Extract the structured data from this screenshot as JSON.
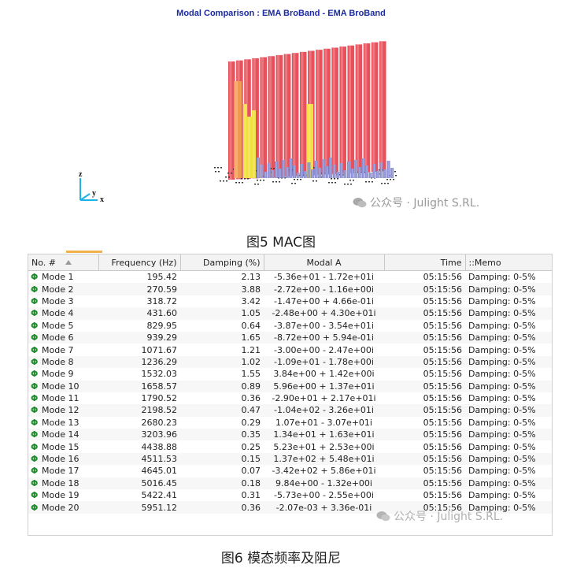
{
  "mac": {
    "title": "Modal Comparison : EMA BroBand - EMA BroBand",
    "axis_labels": {
      "z": "z",
      "y": "y",
      "x": "x"
    },
    "colors": {
      "high": "#e8515c",
      "mid": "#f0e040",
      "orange": "#ef9a50",
      "low": "#8a8ed0"
    }
  },
  "watermark1": {
    "text": "公众号 · Julight S.RL."
  },
  "watermark2": {
    "text": "公众号 · Julight S.RL."
  },
  "caption1": "图5 MAC图",
  "caption2": "图6 模态频率及阻尼",
  "table": {
    "headers": {
      "no": "No. #",
      "frequency": "Frequency (Hz)",
      "damping": "Damping (%)",
      "modal": "Modal A",
      "time": "Time",
      "memo": "::Memo"
    },
    "mode_icon": "Φ",
    "rows": [
      {
        "mode": "Mode 1",
        "freq": "195.42",
        "damp": "2.13",
        "modal": "-5.36e+01 - 1.72e+01i",
        "time": "05:15:56",
        "memo": "Damping: 0-5%"
      },
      {
        "mode": "Mode 2",
        "freq": "270.59",
        "damp": "3.88",
        "modal": "-2.72e+00 - 1.16e+00i",
        "time": "05:15:56",
        "memo": "Damping: 0-5%"
      },
      {
        "mode": "Mode 3",
        "freq": "318.72",
        "damp": "3.42",
        "modal": "-1.47e+00 + 4.66e-01i",
        "time": "05:15:56",
        "memo": "Damping: 0-5%"
      },
      {
        "mode": "Mode 4",
        "freq": "431.60",
        "damp": "1.05",
        "modal": "-2.48e+00 + 4.30e+01i",
        "time": "05:15:56",
        "memo": "Damping: 0-5%"
      },
      {
        "mode": "Mode 5",
        "freq": "829.95",
        "damp": "0.64",
        "modal": "-3.87e+00 - 3.54e+01i",
        "time": "05:15:56",
        "memo": "Damping: 0-5%"
      },
      {
        "mode": "Mode 6",
        "freq": "939.29",
        "damp": "1.65",
        "modal": "-8.72e+00 + 5.94e-01i",
        "time": "05:15:56",
        "memo": "Damping: 0-5%"
      },
      {
        "mode": "Mode 7",
        "freq": "1071.67",
        "damp": "1.21",
        "modal": "-3.00e+00 - 2.47e+00i",
        "time": "05:15:56",
        "memo": "Damping: 0-5%"
      },
      {
        "mode": "Mode 8",
        "freq": "1236.29",
        "damp": "1.02",
        "modal": "-1.09e+01 - 1.78e+00i",
        "time": "05:15:56",
        "memo": "Damping: 0-5%"
      },
      {
        "mode": "Mode 9",
        "freq": "1532.03",
        "damp": "1.55",
        "modal": "3.84e+00 + 1.42e+00i",
        "time": "05:15:56",
        "memo": "Damping: 0-5%"
      },
      {
        "mode": "Mode 10",
        "freq": "1658.57",
        "damp": "0.89",
        "modal": "5.96e+00 + 1.37e+01i",
        "time": "05:15:56",
        "memo": "Damping: 0-5%"
      },
      {
        "mode": "Mode 11",
        "freq": "1790.52",
        "damp": "0.36",
        "modal": "-2.90e+01 + 2.17e+01i",
        "time": "05:15:56",
        "memo": "Damping: 0-5%"
      },
      {
        "mode": "Mode 12",
        "freq": "2198.52",
        "damp": "0.47",
        "modal": "-1.04e+02 - 3.26e+01i",
        "time": "05:15:56",
        "memo": "Damping: 0-5%"
      },
      {
        "mode": "Mode 13",
        "freq": "2680.23",
        "damp": "0.29",
        "modal": "1.07e+01 - 3.07e+01i",
        "time": "05:15:56",
        "memo": "Damping: 0-5%"
      },
      {
        "mode": "Mode 14",
        "freq": "3203.96",
        "damp": "0.35",
        "modal": "1.34e+01 + 1.63e+01i",
        "time": "05:15:56",
        "memo": "Damping: 0-5%"
      },
      {
        "mode": "Mode 15",
        "freq": "4438.88",
        "damp": "0.25",
        "modal": "5.23e+01 + 2.53e+00i",
        "time": "05:15:56",
        "memo": "Damping: 0-5%"
      },
      {
        "mode": "Mode 16",
        "freq": "4511.53",
        "damp": "0.15",
        "modal": "1.37e+02 + 5.48e+01i",
        "time": "05:15:56",
        "memo": "Damping: 0-5%"
      },
      {
        "mode": "Mode 17",
        "freq": "4645.01",
        "damp": "0.07",
        "modal": "-3.42e+02 + 5.86e+01i",
        "time": "05:15:56",
        "memo": "Damping: 0-5%"
      },
      {
        "mode": "Mode 18",
        "freq": "5016.45",
        "damp": "0.18",
        "modal": "9.84e+00 - 1.32e+00i",
        "time": "05:15:56",
        "memo": "Damping: 0-5%"
      },
      {
        "mode": "Mode 19",
        "freq": "5422.41",
        "damp": "0.31",
        "modal": "-5.73e+00 - 2.55e+00i",
        "time": "05:15:56",
        "memo": "Damping: 0-5%"
      },
      {
        "mode": "Mode 20",
        "freq": "5951.12",
        "damp": "0.36",
        "modal": "-2.07e-03 + 3.36e-01i",
        "time": "05:15:56",
        "memo": "Damping: 0-5%"
      }
    ]
  }
}
